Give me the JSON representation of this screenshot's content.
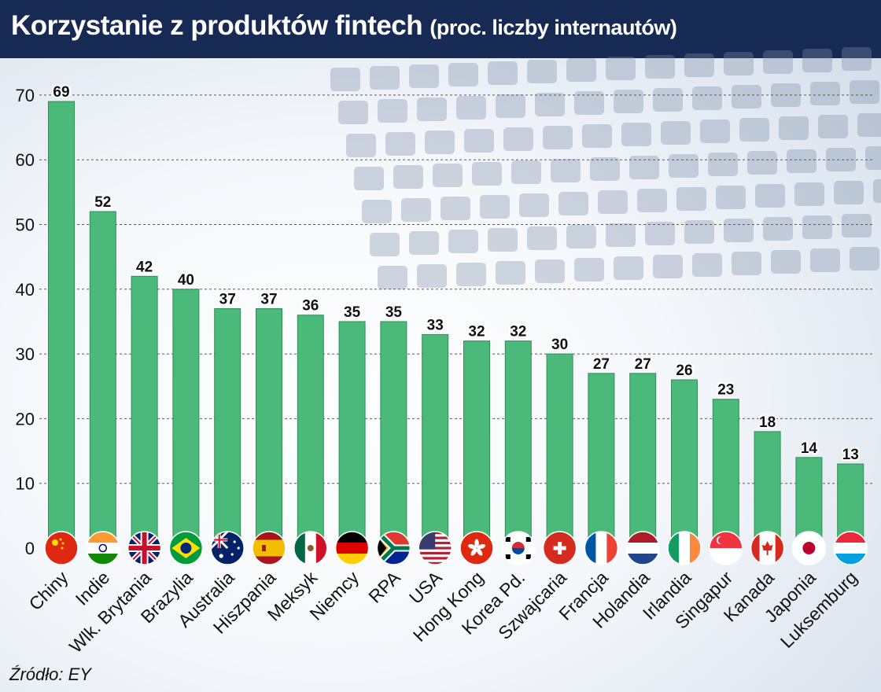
{
  "header": {
    "title": "Korzystanie z produktów fintech",
    "subtitle": "(proc. liczby internautów)"
  },
  "source": "Źródło: EY",
  "colors": {
    "bar": "#4bb97a",
    "bar_edge": "#2f8f56",
    "header_bg": "#172a54"
  },
  "chart_data": {
    "type": "bar",
    "title": "Korzystanie z produktów fintech",
    "subtitle": "(proc. liczby internautów)",
    "ylim": [
      0,
      70
    ],
    "yticks": [
      0,
      10,
      20,
      30,
      40,
      50,
      60,
      70
    ],
    "grid": true,
    "categories": [
      "Chiny",
      "Indie",
      "Wlk. Brytania",
      "Brazylia",
      "Australia",
      "Hiszpania",
      "Meksyk",
      "Niemcy",
      "RPA",
      "USA",
      "Hong Kong",
      "Korea Pd.",
      "Szwajcaria",
      "Francja",
      "Holandia",
      "Irlandia",
      "Singapur",
      "Kanada",
      "Japonia",
      "Luksemburg"
    ],
    "values": [
      69,
      52,
      42,
      40,
      37,
      37,
      36,
      35,
      35,
      33,
      32,
      32,
      30,
      27,
      27,
      26,
      23,
      18,
      14,
      13
    ],
    "flags": [
      "china-flag",
      "india-flag",
      "uk-flag",
      "brazil-flag",
      "australia-flag",
      "spain-flag",
      "mexico-flag",
      "germany-flag",
      "south-africa-flag",
      "usa-flag",
      "hong-kong-flag",
      "south-korea-flag",
      "switzerland-flag",
      "france-flag",
      "netherlands-flag",
      "ireland-flag",
      "singapore-flag",
      "canada-flag",
      "japan-flag",
      "luxembourg-flag"
    ]
  }
}
